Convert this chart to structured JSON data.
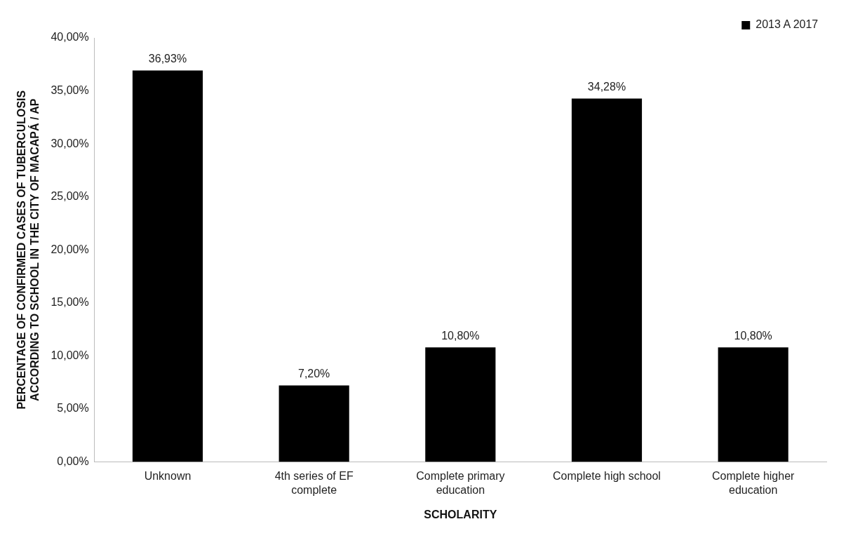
{
  "chart_data": {
    "type": "bar",
    "xlabel": "SCHOLARITY",
    "ylabel": "PERCENTAGE OF CONFIRMED CASES OF TUBERCULOSIS ACCORDING TO SCHOOL IN THE CITY OF MACAPÁ / AP",
    "categories": [
      "Unknown",
      "4th series of EF complete",
      "Complete primary education",
      "Complete high school",
      "Complete higher education"
    ],
    "series": [
      {
        "name": "2013 A 2017",
        "color": "#000000",
        "values": [
          36.93,
          7.2,
          10.8,
          34.28,
          10.8
        ],
        "value_labels": [
          "36,93%",
          "7,20%",
          "10,80%",
          "34,28%",
          "10,80%"
        ]
      }
    ],
    "ylim": [
      0,
      40
    ],
    "yticks": [
      {
        "value": 0,
        "label": "0,00%"
      },
      {
        "value": 5,
        "label": "5,00%"
      },
      {
        "value": 10,
        "label": "10,00%"
      },
      {
        "value": 15,
        "label": "15,00%"
      },
      {
        "value": 20,
        "label": "20,00%"
      },
      {
        "value": 25,
        "label": "25,00%"
      },
      {
        "value": 30,
        "label": "30,00%"
      },
      {
        "value": 35,
        "label": "35,00%"
      },
      {
        "value": 40,
        "label": "40,00%"
      }
    ],
    "grid": false,
    "legend": "top right"
  }
}
